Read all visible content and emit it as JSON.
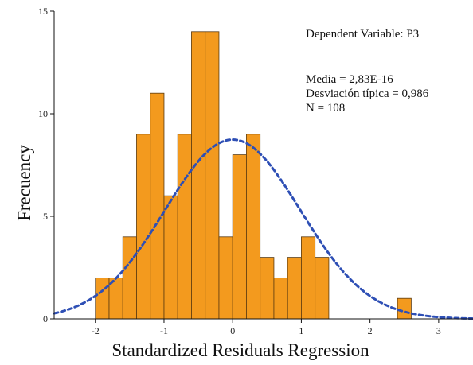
{
  "chart_data": {
    "type": "bar",
    "subtype": "histogram",
    "bins": [
      {
        "x0": -2.0,
        "x1": -1.8,
        "count": 2
      },
      {
        "x0": -1.8,
        "x1": -1.6,
        "count": 2
      },
      {
        "x0": -1.6,
        "x1": -1.4,
        "count": 4
      },
      {
        "x0": -1.4,
        "x1": -1.2,
        "count": 9
      },
      {
        "x0": -1.2,
        "x1": -1.0,
        "count": 11
      },
      {
        "x0": -1.0,
        "x1": -0.8,
        "count": 6
      },
      {
        "x0": -0.8,
        "x1": -0.6,
        "count": 9
      },
      {
        "x0": -0.6,
        "x1": -0.4,
        "count": 14
      },
      {
        "x0": -0.4,
        "x1": -0.2,
        "count": 14
      },
      {
        "x0": -0.2,
        "x1": 0.0,
        "count": 4
      },
      {
        "x0": 0.0,
        "x1": 0.2,
        "count": 8
      },
      {
        "x0": 0.2,
        "x1": 0.4,
        "count": 9
      },
      {
        "x0": 0.4,
        "x1": 0.6,
        "count": 3
      },
      {
        "x0": 0.6,
        "x1": 0.8,
        "count": 2
      },
      {
        "x0": 0.8,
        "x1": 1.0,
        "count": 3
      },
      {
        "x0": 1.0,
        "x1": 1.2,
        "count": 4
      },
      {
        "x0": 1.2,
        "x1": 1.4,
        "count": 3
      },
      {
        "x0": 1.4,
        "x1": 1.6,
        "count": 0
      },
      {
        "x0": 1.6,
        "x1": 1.8,
        "count": 0
      },
      {
        "x0": 1.8,
        "x1": 2.0,
        "count": 0
      },
      {
        "x0": 2.0,
        "x1": 2.2,
        "count": 0
      },
      {
        "x0": 2.2,
        "x1": 2.4,
        "count": 0
      },
      {
        "x0": 2.4,
        "x1": 2.6,
        "count": 1
      }
    ],
    "normal_curve": {
      "mean": 0.0,
      "sd": 0.986,
      "n": 108,
      "style": "dashed",
      "color": "#2e4fb5"
    },
    "xlabel": "Standardized Residuals Regression",
    "ylabel": "Frecuency",
    "xlim": [
      -2.6,
      3.5
    ],
    "ylim": [
      0,
      15
    ],
    "xticks": [
      -2,
      -1,
      0,
      1,
      2,
      3
    ],
    "yticks": [
      0,
      5,
      10,
      15
    ],
    "xtick_labels": [
      "-2",
      "-1",
      "0",
      "1",
      "2",
      "3"
    ],
    "ytick_labels": [
      "0",
      "5",
      "10",
      "15"
    ],
    "grid": false,
    "annotations": [
      "Dependent Variable: P3",
      "Media = 2,83E-16",
      "Desviación típica = 0,986",
      "N = 108"
    ],
    "colors": {
      "bar_fill": "#f39a1e",
      "bar_stroke": "#5a3a10",
      "curve": "#2e4fb5",
      "axis": "#111111"
    }
  }
}
